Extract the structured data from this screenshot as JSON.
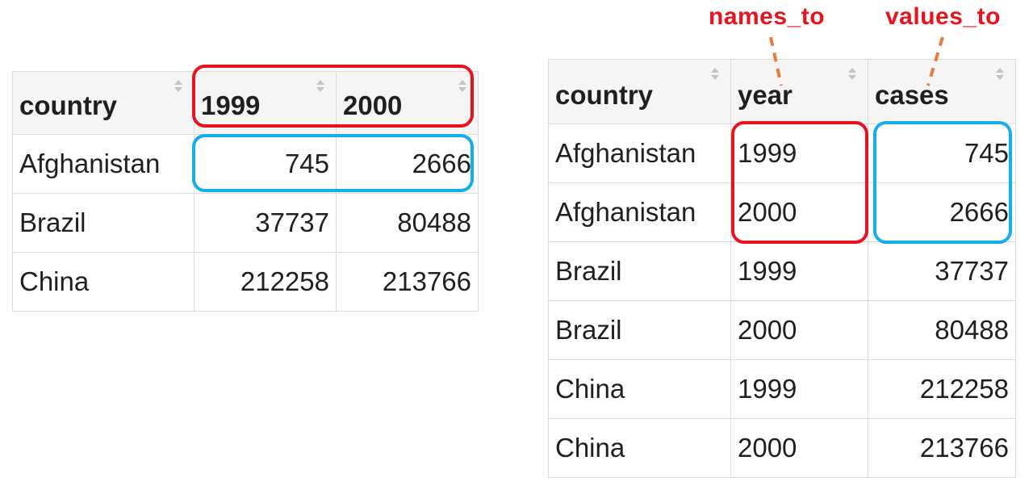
{
  "wide_table": {
    "headers": [
      "country",
      "1999",
      "2000"
    ],
    "rows": [
      [
        "Afghanistan",
        "745",
        "2666"
      ],
      [
        "Brazil",
        "37737",
        "80488"
      ],
      [
        "China",
        "212258",
        "213766"
      ]
    ]
  },
  "long_table": {
    "headers": [
      "country",
      "year",
      "cases"
    ],
    "rows": [
      [
        "Afghanistan",
        "1999",
        "745"
      ],
      [
        "Afghanistan",
        "2000",
        "2666"
      ],
      [
        "Brazil",
        "1999",
        "37737"
      ],
      [
        "Brazil",
        "2000",
        "80488"
      ],
      [
        "China",
        "1999",
        "212258"
      ],
      [
        "China",
        "2000",
        "213766"
      ]
    ]
  },
  "annotations": {
    "names_to": "names_to",
    "values_to": "values_to"
  },
  "colors": {
    "names_highlight": "#e8131d",
    "values_highlight": "#14aee8",
    "arrow": "#e67e3a"
  }
}
